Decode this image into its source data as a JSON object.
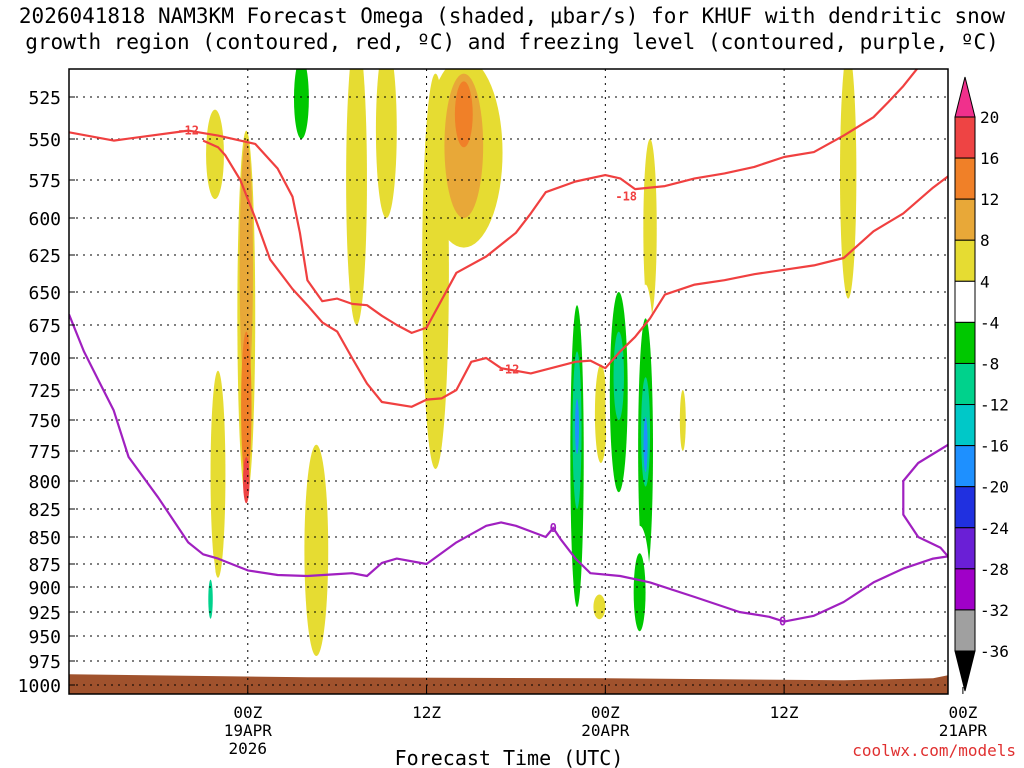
{
  "chart_data": {
    "type": "heatmap",
    "title_line1": "2026041818 NAM3KM Forecast Omega (shaded, μbar/s) for KHUF with dendritic snow",
    "title_line2": "growth region (contoured, red, ºC) and freezing level (contoured, purple, ºC)",
    "xlabel": "Forecast Time (UTC)",
    "watermark": "coolwx.com/models",
    "y_axis": {
      "unit": "hPa",
      "range": [
        1000,
        500
      ],
      "ticks": [
        "525",
        "550",
        "575",
        "600",
        "625",
        "650",
        "675",
        "700",
        "725",
        "750",
        "775",
        "800",
        "825",
        "850",
        "875",
        "900",
        "925",
        "950",
        "975",
        "1000"
      ]
    },
    "x_axis": {
      "range_hours_from_init": [
        -6,
        53
      ],
      "ticks": [
        {
          "hour": 6,
          "label": "00Z",
          "sub1": "19APR",
          "sub2": "2026"
        },
        {
          "hour": 18,
          "label": "12Z",
          "sub1": "",
          "sub2": ""
        },
        {
          "hour": 30,
          "label": "00Z",
          "sub1": "20APR",
          "sub2": ""
        },
        {
          "hour": 42,
          "label": "12Z",
          "sub1": "",
          "sub2": ""
        },
        {
          "hour": 54,
          "label": "00Z",
          "sub1": "21APR",
          "sub2": ""
        }
      ]
    },
    "colorbar": {
      "labels": [
        "20",
        "16",
        "12",
        "8",
        "4",
        "-4",
        "-8",
        "-12",
        "-16",
        "-20",
        "-24",
        "-28",
        "-32",
        "-36"
      ],
      "bins": [
        {
          "range": [
            16,
            20
          ],
          "color": "#ee4444"
        },
        {
          "range": [
            12,
            16
          ],
          "color": "#f08028"
        },
        {
          "range": [
            8,
            12
          ],
          "color": "#e8a838"
        },
        {
          "range": [
            4,
            8
          ],
          "color": "#e6dc32"
        },
        {
          "range": [
            -4,
            4
          ],
          "color": "#ffffff"
        },
        {
          "range": [
            -8,
            -4
          ],
          "color": "#00c800"
        },
        {
          "range": [
            -12,
            -8
          ],
          "color": "#00d28c"
        },
        {
          "range": [
            -16,
            -12
          ],
          "color": "#00c8c8"
        },
        {
          "range": [
            -20,
            -16
          ],
          "color": "#1e90ff"
        },
        {
          "range": [
            -24,
            -20
          ],
          "color": "#2030e0"
        },
        {
          "range": [
            -28,
            -24
          ],
          "color": "#6a1fd6"
        },
        {
          "range": [
            -32,
            -28
          ],
          "color": "#a000c8"
        },
        {
          "range": [
            -36,
            -32
          ],
          "color": "#a0a0a0"
        }
      ],
      "over_color": "#f0308c",
      "under_color": "#000000"
    },
    "omega_features": [
      {
        "t": 3.8,
        "p": 560,
        "w": 0.6,
        "h": 55,
        "level": 4
      },
      {
        "t": 5.9,
        "p": 680,
        "w": 0.6,
        "h": 270,
        "level": 4
      },
      {
        "t": 5.9,
        "p": 640,
        "w": 0.45,
        "h": 180,
        "level": 8
      },
      {
        "t": 5.9,
        "p": 740,
        "w": 0.35,
        "h": 120,
        "level": 12
      },
      {
        "t": 5.9,
        "p": 800,
        "w": 0.22,
        "h": 40,
        "level": 16
      },
      {
        "t": 4.0,
        "p": 800,
        "w": 0.5,
        "h": 180,
        "level": 4
      },
      {
        "t": 3.5,
        "p": 912,
        "w": 0.4,
        "h": 100,
        "level": -4
      },
      {
        "t": 3.5,
        "p": 912,
        "w": 0.15,
        "h": 40,
        "level": -12
      },
      {
        "t": 9.2,
        "p": 575,
        "w": 0.9,
        "h": 140,
        "level": -4
      },
      {
        "t": 9.6,
        "p": 525,
        "w": 0.5,
        "h": 50,
        "level": -8
      },
      {
        "t": 9.1,
        "p": 880,
        "w": 0.4,
        "h": 120,
        "level": -4
      },
      {
        "t": 10.6,
        "p": 870,
        "w": 0.8,
        "h": 200,
        "level": 4
      },
      {
        "t": 13.3,
        "p": 580,
        "w": 0.7,
        "h": 190,
        "level": 4
      },
      {
        "t": 15.3,
        "p": 545,
        "w": 0.7,
        "h": 110,
        "level": 4
      },
      {
        "t": 18.6,
        "p": 650,
        "w": 0.9,
        "h": 280,
        "level": 4
      },
      {
        "t": 20.5,
        "p": 560,
        "w": 2.6,
        "h": 120,
        "level": 4
      },
      {
        "t": 20.5,
        "p": 555,
        "w": 1.3,
        "h": 90,
        "level": 8
      },
      {
        "t": 20.5,
        "p": 535,
        "w": 0.6,
        "h": 40,
        "level": 12
      },
      {
        "t": 28.1,
        "p": 810,
        "w": 0.7,
        "h": 330,
        "level": -4
      },
      {
        "t": 28.1,
        "p": 790,
        "w": 0.45,
        "h": 260,
        "level": -8
      },
      {
        "t": 28.1,
        "p": 760,
        "w": 0.3,
        "h": 130,
        "level": -12
      },
      {
        "t": 28.1,
        "p": 755,
        "w": 0.12,
        "h": 45,
        "level": -20
      },
      {
        "t": 29.6,
        "p": 920,
        "w": 0.4,
        "h": 25,
        "level": 4
      },
      {
        "t": 29.7,
        "p": 745,
        "w": 0.4,
        "h": 80,
        "level": 4
      },
      {
        "t": 30.9,
        "p": 730,
        "w": 0.9,
        "h": 230,
        "level": -4
      },
      {
        "t": 30.9,
        "p": 730,
        "w": 0.6,
        "h": 160,
        "level": -8
      },
      {
        "t": 30.9,
        "p": 715,
        "w": 0.35,
        "h": 70,
        "level": -12
      },
      {
        "t": 33.0,
        "p": 610,
        "w": 0.45,
        "h": 120,
        "level": 4
      },
      {
        "t": 32.7,
        "p": 810,
        "w": 0.8,
        "h": 330,
        "level": -4
      },
      {
        "t": 32.7,
        "p": 780,
        "w": 0.5,
        "h": 220,
        "level": -8
      },
      {
        "t": 32.7,
        "p": 760,
        "w": 0.3,
        "h": 90,
        "level": -12
      },
      {
        "t": 32.7,
        "p": 770,
        "w": 0.12,
        "h": 45,
        "level": -20
      },
      {
        "t": 35.2,
        "p": 750,
        "w": 0.2,
        "h": 50,
        "level": 4
      },
      {
        "t": 35.9,
        "p": 750,
        "w": 0.15,
        "h": 30,
        "level": -4
      },
      {
        "t": 36.6,
        "p": 655,
        "w": 0.9,
        "h": 70,
        "level": -4
      },
      {
        "t": 32.3,
        "p": 905,
        "w": 0.7,
        "h": 130,
        "level": -4
      },
      {
        "t": 32.3,
        "p": 905,
        "w": 0.4,
        "h": 80,
        "level": -8
      },
      {
        "t": 20.2,
        "p": 820,
        "w": 0.4,
        "h": 30,
        "level": -4
      },
      {
        "t": 46.3,
        "p": 575,
        "w": 0.55,
        "h": 160,
        "level": 4
      }
    ],
    "series": [
      {
        "name": "-12 C isotherm (upper)",
        "color": "#f04040",
        "label": "-12",
        "points": [
          [
            -6,
            546
          ],
          [
            -3,
            551
          ],
          [
            2,
            545
          ],
          [
            4,
            548
          ],
          [
            6.5,
            553
          ],
          [
            8,
            568
          ],
          [
            9,
            586
          ],
          [
            9.5,
            610
          ],
          [
            10,
            642
          ],
          [
            11,
            657
          ],
          [
            12,
            655
          ],
          [
            13,
            659
          ],
          [
            14,
            660
          ],
          [
            15,
            668
          ],
          [
            16,
            675
          ],
          [
            17,
            681
          ],
          [
            18,
            677
          ],
          [
            20,
            637
          ],
          [
            22,
            626
          ],
          [
            24,
            610
          ],
          [
            25,
            597
          ],
          [
            26,
            583
          ],
          [
            28,
            576
          ],
          [
            30,
            572
          ],
          [
            31,
            574
          ],
          [
            32,
            581
          ],
          [
            34,
            579
          ],
          [
            36,
            574
          ],
          [
            38,
            571
          ],
          [
            40,
            567
          ],
          [
            42,
            561
          ],
          [
            44,
            558
          ],
          [
            46,
            548
          ],
          [
            48,
            537
          ],
          [
            49,
            528
          ],
          [
            50,
            518
          ],
          [
            51,
            506
          ]
        ],
        "label_at": [
          2.0,
          545
        ]
      },
      {
        "name": "-12 C isotherm (lower)",
        "color": "#f04040",
        "label": "-12",
        "points": [
          [
            3,
            551
          ],
          [
            4,
            555
          ],
          [
            4.5,
            560
          ],
          [
            5.5,
            575
          ],
          [
            6.5,
            600
          ],
          [
            7.5,
            628
          ],
          [
            9,
            648
          ],
          [
            10,
            660
          ],
          [
            11,
            673
          ],
          [
            12,
            680
          ],
          [
            13,
            700
          ],
          [
            14,
            720
          ],
          [
            15,
            735
          ],
          [
            17,
            739
          ],
          [
            18,
            733
          ],
          [
            19,
            732
          ],
          [
            20,
            725
          ],
          [
            21,
            703
          ],
          [
            22,
            700
          ],
          [
            23,
            708
          ],
          [
            25,
            712
          ],
          [
            27,
            706
          ],
          [
            28,
            703
          ],
          [
            29,
            702
          ],
          [
            30,
            708
          ],
          [
            31,
            695
          ],
          [
            32,
            684
          ],
          [
            33,
            670
          ],
          [
            34,
            652
          ],
          [
            36,
            645
          ],
          [
            38,
            642
          ],
          [
            40,
            638
          ],
          [
            42,
            635
          ],
          [
            44,
            632
          ],
          [
            46,
            627
          ],
          [
            48,
            609
          ],
          [
            50,
            597
          ],
          [
            52,
            580
          ],
          [
            54,
            566
          ],
          [
            56,
            556
          ],
          [
            58,
            550
          ],
          [
            60,
            548
          ],
          [
            61,
            549
          ]
        ],
        "label_at": [
          23.5,
          709
        ]
      },
      {
        "name": "0 C freezing level",
        "color": "#a020c0",
        "label": "0",
        "points": [
          [
            -6,
            667
          ],
          [
            -5,
            695
          ],
          [
            -4,
            718
          ],
          [
            -3,
            742
          ],
          [
            -2,
            780
          ],
          [
            0,
            815
          ],
          [
            2,
            855
          ],
          [
            3,
            866
          ],
          [
            4,
            870
          ],
          [
            6,
            882
          ],
          [
            8,
            887
          ],
          [
            10,
            888
          ],
          [
            12,
            886
          ],
          [
            13,
            885
          ],
          [
            14,
            888
          ],
          [
            15,
            874
          ],
          [
            16,
            870
          ],
          [
            18,
            875
          ],
          [
            20,
            855
          ],
          [
            22,
            840
          ],
          [
            23,
            837
          ],
          [
            24,
            840
          ],
          [
            25,
            845
          ],
          [
            26,
            850
          ],
          [
            26.5,
            842
          ],
          [
            27,
            852
          ],
          [
            28,
            870
          ],
          [
            29,
            885
          ],
          [
            31,
            888
          ],
          [
            33,
            895
          ],
          [
            36,
            910
          ],
          [
            39,
            925
          ],
          [
            41,
            930
          ],
          [
            42,
            935
          ],
          [
            44,
            929
          ],
          [
            46,
            915
          ],
          [
            48,
            895
          ],
          [
            50,
            880
          ],
          [
            52,
            870
          ],
          [
            53,
            868
          ],
          [
            52.5,
            860
          ],
          [
            51,
            850
          ],
          [
            50,
            830
          ],
          [
            50,
            800
          ],
          [
            51,
            785
          ],
          [
            53,
            770
          ],
          [
            54,
            755
          ],
          [
            55,
            745
          ],
          [
            56,
            732
          ],
          [
            58,
            722
          ],
          [
            60,
            714
          ]
        ],
        "label_at": [
          26.5,
          842
        ]
      }
    ],
    "minus18_label": {
      "text": "-18",
      "t": 31.4,
      "p": 586
    },
    "annotations_zero": [
      {
        "text": "0",
        "t": 41.9,
        "p": 935
      }
    ],
    "ground": {
      "color": "#a0522d",
      "top_hpa": 993
    }
  }
}
